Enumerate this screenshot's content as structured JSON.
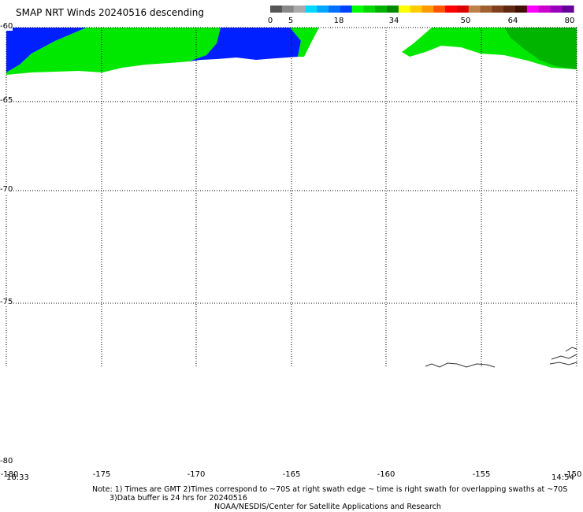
{
  "title": "SMAP NRT Winds  20240516 descending",
  "colorbar": {
    "ticks": [
      "0",
      "5",
      "18",
      "34",
      "50",
      "64",
      "80"
    ],
    "colors": [
      "#555555",
      "#888888",
      "#aaaaaa",
      "#00d8ff",
      "#00a8ff",
      "#0070ff",
      "#0040ff",
      "#00ff00",
      "#00d800",
      "#00b000",
      "#008800",
      "#ffff00",
      "#ffcc00",
      "#ff9900",
      "#ff5500",
      "#ff0000",
      "#dd0000",
      "#c0804a",
      "#a06030",
      "#804020",
      "#602810",
      "#401000",
      "#ff00ff",
      "#cc00cc",
      "#9900bb",
      "#660099"
    ]
  },
  "lat_labels": [
    "-60",
    "-65",
    "-70",
    "-75",
    "-80"
  ],
  "lon_labels": [
    "-180",
    "-175",
    "-170",
    "-165",
    "-160",
    "-155",
    "-150"
  ],
  "time_left": "16:33",
  "time_right": "14:54",
  "notes": [
    "Note: 1) Times are GMT 2)Times correspond to ~70S at right swath edge ~ time is right swath for overlapping swaths at ~70S",
    "3)Data buffer is 24 hrs for 20240516",
    "NOAA/NESDIS/Center for Satellite Applications and Research"
  ],
  "swath_colors": {
    "low": "#0020ff",
    "moderate": "#00e800",
    "moderate_dark": "#00aa00"
  }
}
